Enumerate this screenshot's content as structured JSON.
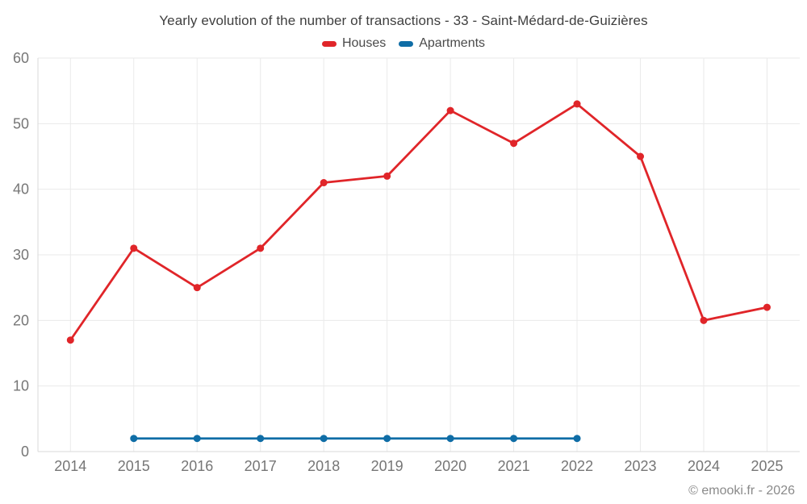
{
  "title": "Yearly evolution of the number of transactions - 33 - Saint-Médard-de-Guizières",
  "footer": "© emooki.fr - 2026",
  "colors": {
    "houses": "#e02529",
    "apartments": "#0f6da6",
    "grid": "#eaeaea",
    "axis": "#d9d9d9",
    "tick_text": "#767676"
  },
  "chart_data": {
    "type": "line",
    "title": "Yearly evolution of the number of transactions - 33 - Saint-Médard-de-Guizières",
    "categories": [
      2014,
      2015,
      2016,
      2017,
      2018,
      2019,
      2020,
      2021,
      2022,
      2023,
      2024,
      2025
    ],
    "series": [
      {
        "name": "Houses",
        "color": "#e02529",
        "x": [
          2014,
          2015,
          2016,
          2017,
          2018,
          2019,
          2020,
          2021,
          2022,
          2023,
          2024,
          2025
        ],
        "values": [
          17,
          31,
          25,
          31,
          41,
          42,
          52,
          47,
          53,
          45,
          20,
          22
        ]
      },
      {
        "name": "Apartments",
        "color": "#0f6da6",
        "x": [
          2015,
          2016,
          2017,
          2018,
          2019,
          2020,
          2021,
          2022
        ],
        "values": [
          2,
          2,
          2,
          2,
          2,
          2,
          2,
          2
        ]
      }
    ],
    "xlabel": "",
    "ylabel": "",
    "ylim": [
      0,
      60
    ],
    "yticks": [
      0,
      10,
      20,
      30,
      40,
      50,
      60
    ],
    "grid": true,
    "legend_position": "top"
  }
}
